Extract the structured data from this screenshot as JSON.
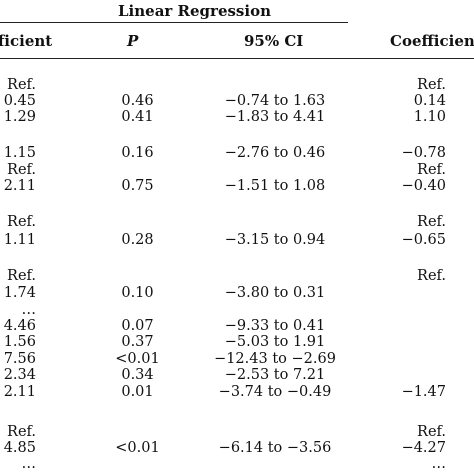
{
  "table": {
    "group_header": "Linear Regression",
    "columns": [
      "fficient",
      "P",
      "95% CI",
      "Coefficient"
    ],
    "rows": [
      {
        "coef": "Ref.",
        "p": "",
        "ci": "",
        "coef2": "Ref."
      },
      {
        "coef": "0.45",
        "p": "0.46",
        "ci": "−0.74 to 1.63",
        "coef2": "0.14"
      },
      {
        "coef": "1.29",
        "p": "0.41",
        "ci": "−1.83 to 4.41",
        "coef2": "1.10"
      },
      {
        "coef": "",
        "p": "",
        "ci": "",
        "coef2": ""
      },
      {
        "coef": "1.15",
        "p": "0.16",
        "ci": "−2.76 to 0.46",
        "coef2": "−0.78"
      },
      {
        "coef": "Ref.",
        "p": "",
        "ci": "",
        "coef2": "Ref."
      },
      {
        "coef": "2.11",
        "p": "0.75",
        "ci": "−1.51 to 1.08",
        "coef2": "−0.40"
      },
      {
        "coef": "",
        "p": "",
        "ci": "",
        "coef2": ""
      },
      {
        "coef": "Ref.",
        "p": "",
        "ci": "",
        "coef2": "Ref."
      },
      {
        "coef": "1.11",
        "p": "0.28",
        "ci": "−3.15 to 0.94",
        "coef2": "−0.65"
      },
      {
        "coef": "",
        "p": "",
        "ci": "",
        "coef2": ""
      },
      {
        "coef": "Ref.",
        "p": "",
        "ci": "",
        "coef2": "Ref."
      },
      {
        "coef": "1.74",
        "p": "0.10",
        "ci": "−3.80 to 0.31",
        "coef2": ""
      },
      {
        "coef": "…",
        "p": "",
        "ci": "",
        "coef2": ""
      },
      {
        "coef": "4.46",
        "p": "0.07",
        "ci": "−9.33 to 0.41",
        "coef2": ""
      },
      {
        "coef": "1.56",
        "p": "0.37",
        "ci": "−5.03 to 1.91",
        "coef2": ""
      },
      {
        "coef": "7.56",
        "p": "<0.01",
        "ci": "−12.43 to −2.69",
        "coef2": ""
      },
      {
        "coef": "2.34",
        "p": "0.34",
        "ci": "−2.53 to 7.21",
        "coef2": ""
      },
      {
        "coef": "2.11",
        "p": "0.01",
        "ci": "−3.74 to −0.49",
        "coef2": "−1.47"
      },
      {
        "coef": "",
        "p": "",
        "ci": "",
        "coef2": ""
      },
      {
        "coef": "Ref.",
        "p": "",
        "ci": "",
        "coef2": "Ref."
      },
      {
        "coef": "4.85",
        "p": "<0.01",
        "ci": "−6.14 to −3.56",
        "coef2": "−4.27"
      },
      {
        "coef": "…",
        "p": "",
        "ci": "",
        "coef2": "…"
      }
    ]
  }
}
